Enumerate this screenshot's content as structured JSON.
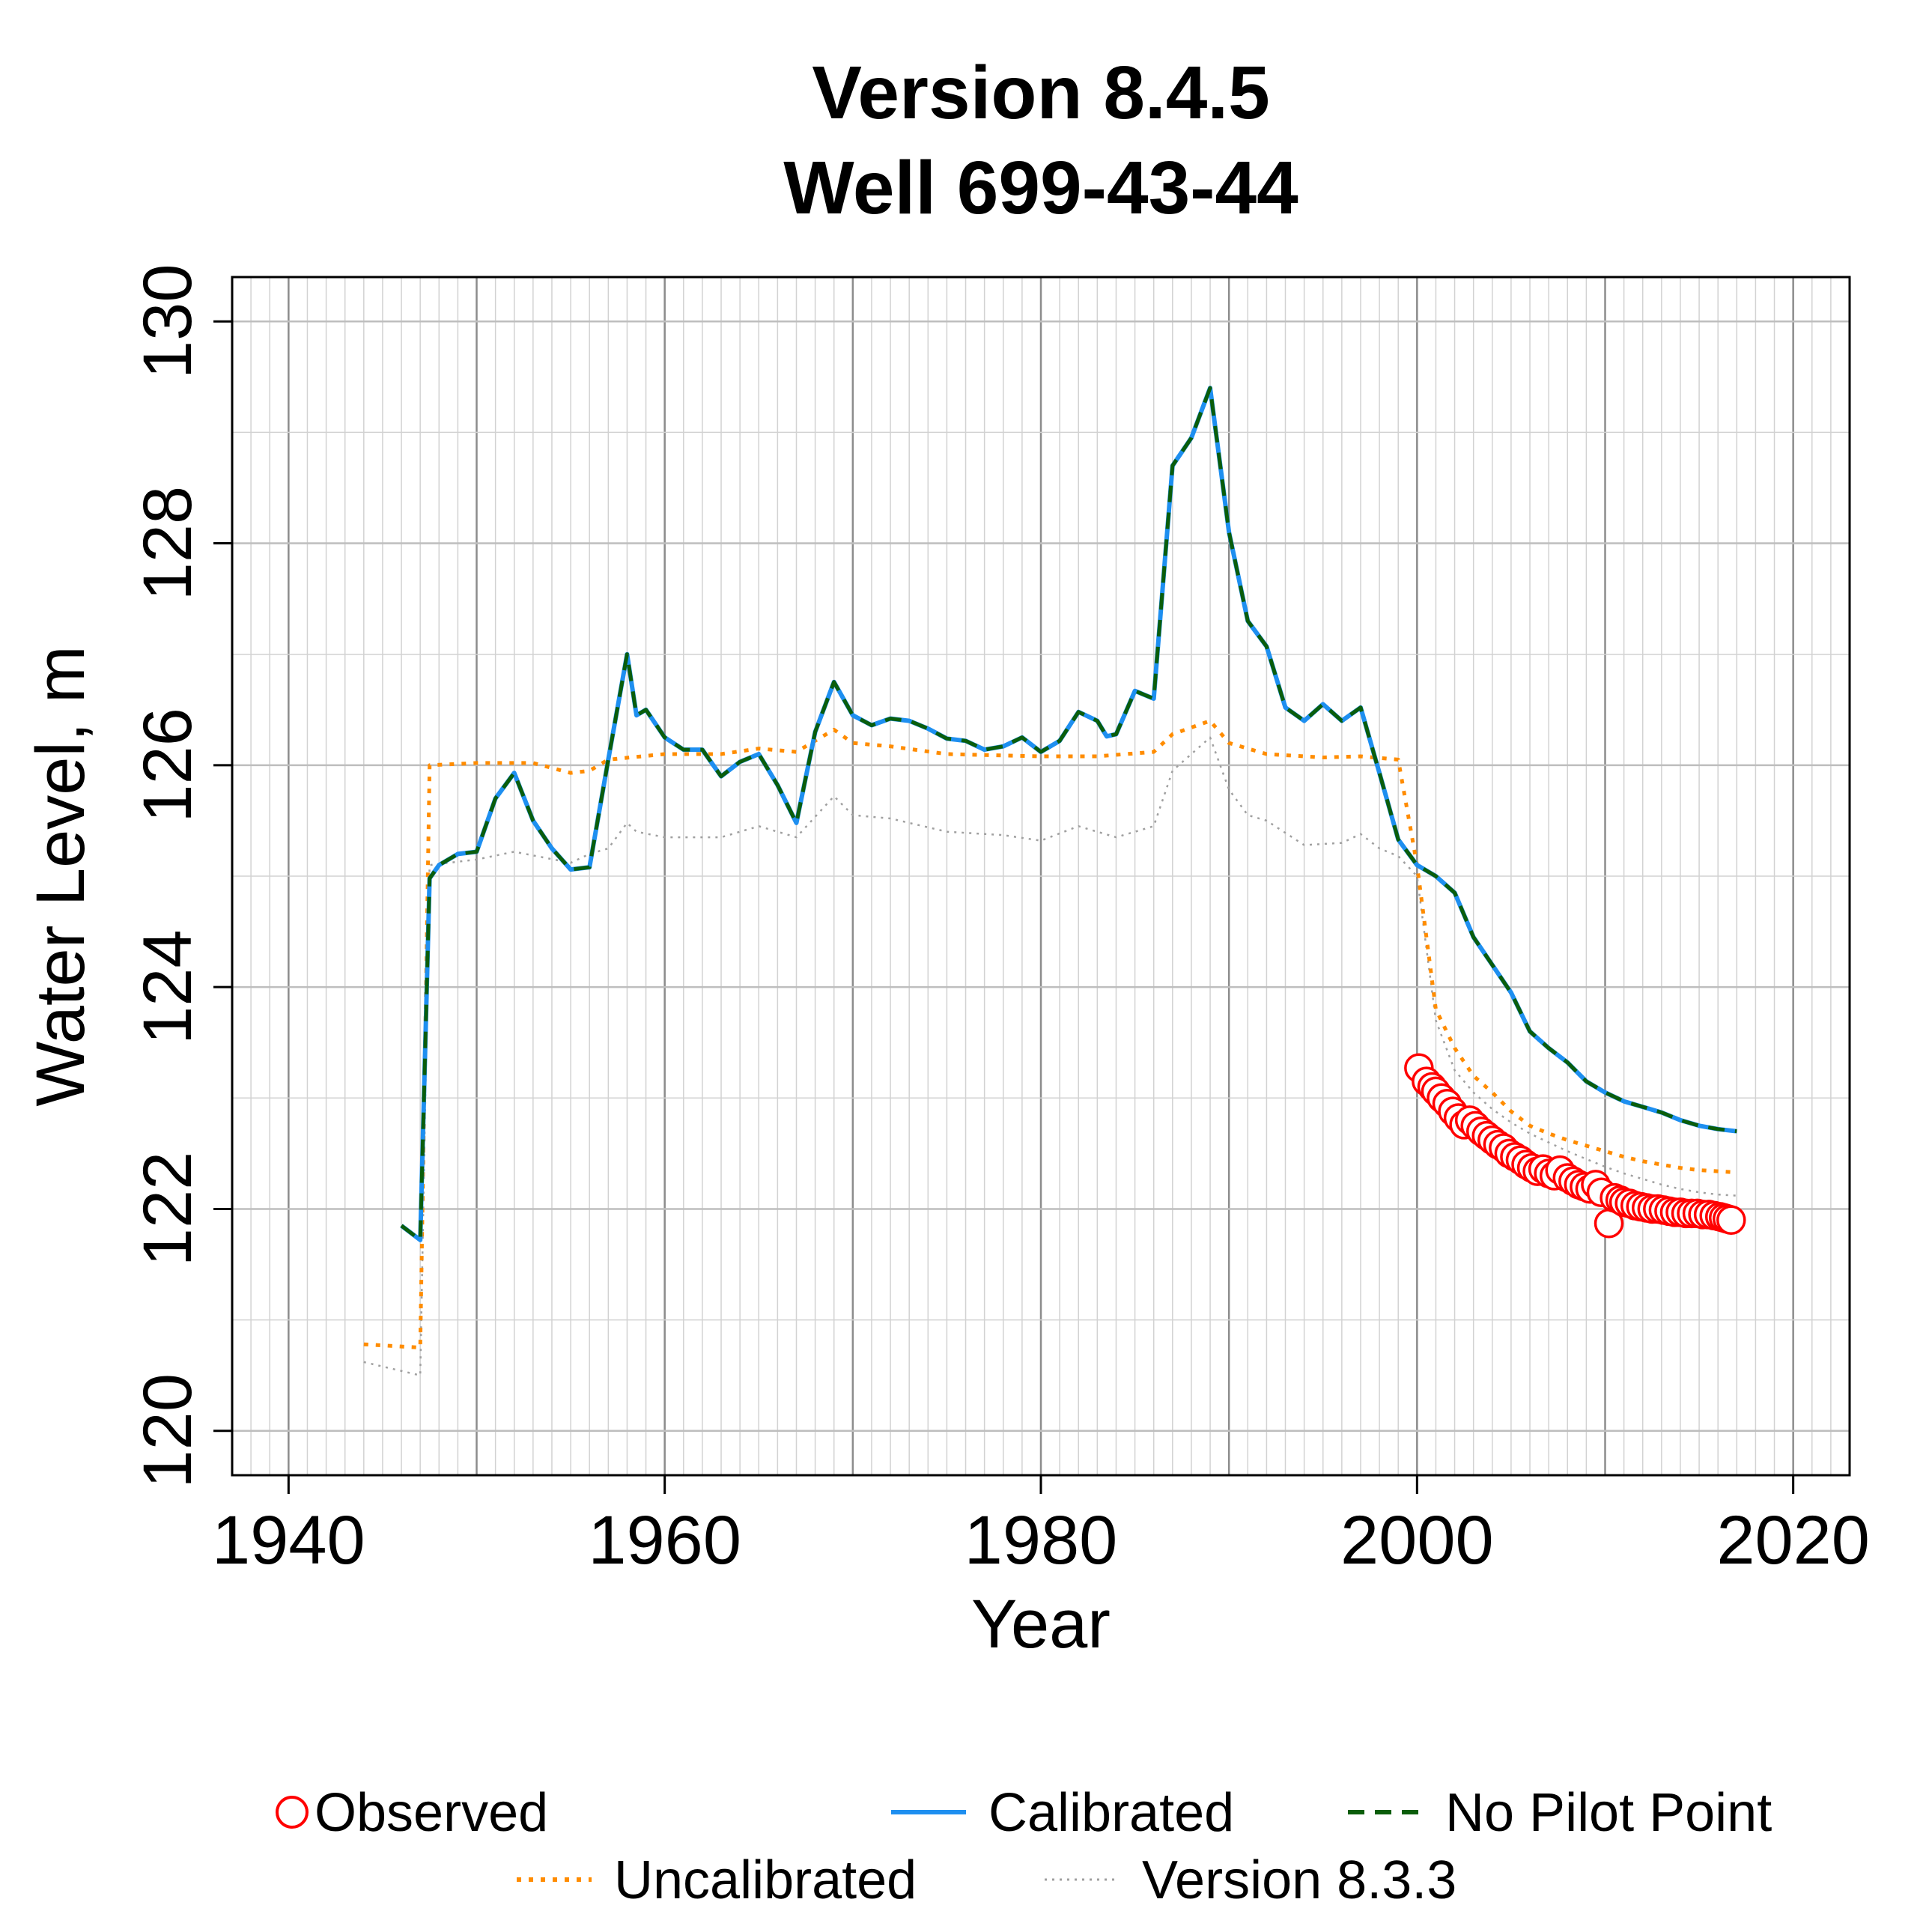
{
  "chart_data": {
    "type": "line",
    "title": "Version 8.4.5",
    "subtitle": "Well 699-43-44",
    "xlabel": "Year",
    "ylabel": "Water Level, m",
    "xlim": [
      1937,
      2023
    ],
    "ylim": [
      119.6,
      130.4
    ],
    "x_ticks": [
      1940,
      1960,
      1980,
      2000,
      2020
    ],
    "y_ticks": [
      120,
      122,
      124,
      126,
      128,
      130
    ],
    "grid": true,
    "legend_position": "bottom",
    "series": [
      {
        "name": "Observed",
        "style": "points",
        "color": "#ff0000",
        "x": [
          2000.1,
          2000.5,
          2000.8,
          2001.0,
          2001.3,
          2001.6,
          2001.9,
          2002.2,
          2002.5,
          2002.8,
          2003.1,
          2003.4,
          2003.7,
          2004.0,
          2004.3,
          2004.6,
          2004.9,
          2005.2,
          2005.5,
          2005.8,
          2006.1,
          2006.4,
          2006.7,
          2007.0,
          2007.3,
          2007.6,
          2008.0,
          2008.3,
          2008.6,
          2008.9,
          2009.2,
          2009.5,
          2009.8,
          2010.2,
          2010.5,
          2010.8,
          2011.0,
          2011.3,
          2011.6,
          2011.9,
          2012.2,
          2012.5,
          2012.8,
          2013.1,
          2013.4,
          2013.7,
          2014.0,
          2014.3,
          2014.6,
          2014.9,
          2015.2,
          2015.5,
          2015.8,
          2016.1,
          2016.3,
          2016.5,
          2016.7
        ],
        "y": [
          123.27,
          123.15,
          123.1,
          123.06,
          123.0,
          122.95,
          122.88,
          122.82,
          122.76,
          122.8,
          122.75,
          122.7,
          122.66,
          122.62,
          122.58,
          122.55,
          122.5,
          122.47,
          122.44,
          122.4,
          122.37,
          122.34,
          122.36,
          122.32,
          122.3,
          122.35,
          122.28,
          122.25,
          122.22,
          122.2,
          122.18,
          122.22,
          122.15,
          121.87,
          122.1,
          122.08,
          122.06,
          122.05,
          122.03,
          122.02,
          122.01,
          122.0,
          122.0,
          121.99,
          121.98,
          121.97,
          121.97,
          121.96,
          121.96,
          121.96,
          121.95,
          121.95,
          121.94,
          121.93,
          121.92,
          121.91,
          121.9
        ]
      },
      {
        "name": "Calibrated",
        "style": "solid",
        "color": "#1e8ff0",
        "x": [
          1946,
          1947,
          1947.5,
          1948,
          1949,
          1950,
          1951,
          1952,
          1953,
          1954,
          1955,
          1956,
          1957,
          1958,
          1958.5,
          1959,
          1960,
          1961,
          1962,
          1963,
          1964,
          1965,
          1966,
          1967,
          1968,
          1969,
          1970,
          1971,
          1972,
          1973,
          1974,
          1975,
          1976,
          1977,
          1978,
          1979,
          1980,
          1981,
          1982,
          1983,
          1983.5,
          1984,
          1985,
          1986,
          1987,
          1988,
          1989,
          1990,
          1991,
          1992,
          1993,
          1994,
          1995,
          1996,
          1997,
          1998,
          1999,
          2000,
          2001,
          2002,
          2003,
          2004,
          2005,
          2006,
          2007,
          2008,
          2009,
          2010,
          2011,
          2012,
          2013,
          2014,
          2015,
          2016,
          2017
        ],
        "y": [
          121.85,
          121.72,
          124.98,
          125.1,
          125.2,
          125.22,
          125.7,
          125.93,
          125.5,
          125.25,
          125.06,
          125.08,
          126.05,
          127.0,
          126.45,
          126.5,
          126.25,
          126.14,
          126.14,
          125.9,
          126.03,
          126.1,
          125.82,
          125.48,
          126.3,
          126.75,
          126.45,
          126.36,
          126.42,
          126.4,
          126.33,
          126.24,
          126.22,
          126.14,
          126.17,
          126.25,
          126.12,
          126.22,
          126.48,
          126.4,
          126.26,
          126.28,
          126.67,
          126.6,
          128.7,
          128.95,
          129.4,
          128.1,
          127.3,
          127.07,
          126.52,
          126.4,
          126.55,
          126.4,
          126.52,
          125.93,
          125.33,
          125.1,
          125.0,
          124.85,
          124.45,
          124.2,
          123.95,
          123.6,
          123.45,
          123.32,
          123.15,
          123.05,
          122.97,
          122.92,
          122.87,
          122.8,
          122.75,
          122.72,
          122.7
        ]
      },
      {
        "name": "No Pilot Point",
        "style": "dashed",
        "color": "#0a5d0a",
        "x": [
          1946,
          1947,
          1947.5,
          1948,
          1949,
          1950,
          1951,
          1952,
          1953,
          1954,
          1955,
          1956,
          1957,
          1958,
          1958.5,
          1959,
          1960,
          1961,
          1962,
          1963,
          1964,
          1965,
          1966,
          1967,
          1968,
          1969,
          1970,
          1971,
          1972,
          1973,
          1974,
          1975,
          1976,
          1977,
          1978,
          1979,
          1980,
          1981,
          1982,
          1983,
          1983.5,
          1984,
          1985,
          1986,
          1987,
          1988,
          1989,
          1990,
          1991,
          1992,
          1993,
          1994,
          1995,
          1996,
          1997,
          1998,
          1999,
          2000,
          2001,
          2002,
          2003,
          2004,
          2005,
          2006,
          2007,
          2008,
          2009,
          2010,
          2011,
          2012,
          2013,
          2014,
          2015,
          2016,
          2017
        ],
        "y": [
          121.85,
          121.72,
          124.98,
          125.1,
          125.2,
          125.22,
          125.7,
          125.93,
          125.5,
          125.25,
          125.06,
          125.08,
          126.05,
          127.0,
          126.45,
          126.5,
          126.25,
          126.14,
          126.14,
          125.9,
          126.03,
          126.1,
          125.82,
          125.48,
          126.3,
          126.75,
          126.45,
          126.36,
          126.42,
          126.4,
          126.33,
          126.24,
          126.22,
          126.14,
          126.17,
          126.25,
          126.12,
          126.22,
          126.48,
          126.4,
          126.26,
          126.28,
          126.67,
          126.6,
          128.7,
          128.95,
          129.4,
          128.1,
          127.3,
          127.07,
          126.52,
          126.4,
          126.55,
          126.4,
          126.52,
          125.93,
          125.33,
          125.1,
          125.0,
          124.85,
          124.45,
          124.2,
          123.95,
          123.6,
          123.45,
          123.32,
          123.15,
          123.05,
          122.97,
          122.92,
          122.87,
          122.8,
          122.75,
          122.72,
          122.7
        ]
      },
      {
        "name": "Uncalibrated",
        "style": "dotted",
        "color": "#ff8c00",
        "x": [
          1944,
          1947,
          1947.5,
          1950,
          1953,
          1955,
          1956,
          1957,
          1960,
          1963,
          1965,
          1967,
          1969,
          1970,
          1972,
          1975,
          1980,
          1983,
          1986,
          1987,
          1989,
          1990,
          1992,
          1995,
          1997,
          1999,
          2000,
          2001,
          2002,
          2003,
          2004,
          2005,
          2006,
          2007,
          2008,
          2009,
          2010,
          2011,
          2012,
          2013,
          2014,
          2015,
          2016,
          2017
        ],
        "y": [
          120.78,
          120.75,
          126.0,
          126.02,
          126.02,
          125.93,
          125.95,
          126.05,
          126.1,
          126.1,
          126.15,
          126.12,
          126.32,
          126.2,
          126.17,
          126.1,
          126.08,
          126.08,
          126.12,
          126.28,
          126.4,
          126.2,
          126.1,
          126.07,
          126.08,
          126.05,
          125.1,
          123.8,
          123.45,
          123.2,
          123.05,
          122.88,
          122.75,
          122.68,
          122.62,
          122.57,
          122.52,
          122.47,
          122.43,
          122.4,
          122.37,
          122.35,
          122.34,
          122.33
        ]
      },
      {
        "name": "Version 8.3.3",
        "style": "dotted-thin",
        "color": "#a0a0a0",
        "x": [
          1944,
          1947,
          1947.5,
          1950,
          1952,
          1955,
          1956,
          1957,
          1958,
          1958.5,
          1960,
          1963,
          1965,
          1967,
          1969,
          1970,
          1972,
          1975,
          1978,
          1980,
          1982,
          1983,
          1984,
          1986,
          1987,
          1989,
          1990,
          1991,
          1992,
          1994,
          1996,
          1997,
          1998,
          1999,
          2000,
          2001,
          2002,
          2003,
          2004,
          2005,
          2006,
          2007,
          2008,
          2009,
          2010,
          2011,
          2012,
          2013,
          2014,
          2015,
          2016,
          2017
        ],
        "y": [
          120.62,
          120.5,
          125.1,
          125.15,
          125.22,
          125.12,
          125.2,
          125.25,
          125.48,
          125.4,
          125.35,
          125.35,
          125.45,
          125.35,
          125.72,
          125.55,
          125.52,
          125.4,
          125.37,
          125.32,
          125.45,
          125.4,
          125.35,
          125.45,
          125.95,
          126.25,
          125.78,
          125.55,
          125.5,
          125.28,
          125.3,
          125.38,
          125.25,
          125.18,
          125.0,
          123.7,
          123.25,
          123.05,
          122.9,
          122.78,
          122.68,
          122.6,
          122.52,
          122.45,
          122.38,
          122.32,
          122.27,
          122.22,
          122.18,
          122.15,
          122.13,
          122.12
        ]
      }
    ]
  }
}
